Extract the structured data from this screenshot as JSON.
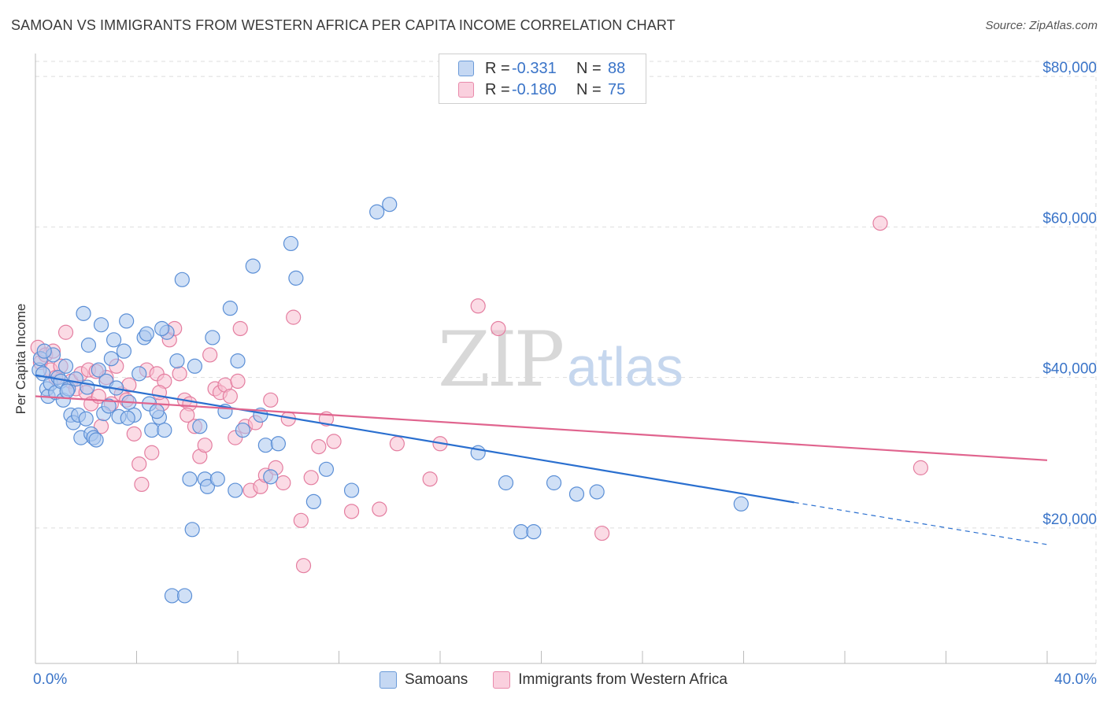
{
  "header": {
    "title": "SAMOAN VS IMMIGRANTS FROM WESTERN AFRICA PER CAPITA INCOME CORRELATION CHART",
    "source": "Source: ZipAtlas.com"
  },
  "watermark": {
    "zip": "ZIP",
    "atlas": "atlas"
  },
  "colors": {
    "blue_fill": "#a9c6ee",
    "blue_stroke": "#5b8fd6",
    "blue_line": "#2a6fcf",
    "pink_fill": "#f7bdd0",
    "pink_stroke": "#e47ea0",
    "pink_line": "#e0648e",
    "axis_text": "#3a74c8",
    "grid": "#dddddd"
  },
  "legend_top": [
    {
      "r_label": "R =",
      "r_value": "-0.331",
      "n_label": "N =",
      "n_value": "88"
    },
    {
      "r_label": "R =",
      "r_value": "-0.180",
      "n_label": "N =",
      "n_value": "75"
    }
  ],
  "legend_bottom": [
    "Samoans",
    "Immigrants from Western Africa"
  ],
  "chart_data": {
    "type": "scatter",
    "title": "SAMOAN VS IMMIGRANTS FROM WESTERN AFRICA PER CAPITA INCOME CORRELATION CHART",
    "xlabel": "",
    "ylabel": "Per Capita Income",
    "xlim": [
      0,
      40
    ],
    "ylim": [
      2000,
      82000
    ],
    "x_ticks": [
      0,
      4,
      8,
      12,
      16,
      20,
      24,
      28,
      32,
      36,
      40
    ],
    "x_tick_labels": {
      "0": "0.0%",
      "40": "40.0%"
    },
    "y_ticks": [
      20000,
      40000,
      60000,
      80000
    ],
    "y_tick_labels": [
      "$20,000",
      "$40,000",
      "$60,000",
      "$80,000"
    ],
    "grid": true,
    "legend_position": "top-center",
    "series": [
      {
        "name": "Samoans",
        "R": -0.331,
        "N": 88,
        "trend": {
          "x_start": 0,
          "y_start": 40300,
          "x_end": 30,
          "y_end": 23400,
          "dashed_to_x": 40,
          "dashed_to_y": 17800
        },
        "points": [
          [
            0.15,
            41000
          ],
          [
            0.2,
            42500
          ],
          [
            0.3,
            40500
          ],
          [
            0.45,
            38500
          ],
          [
            0.5,
            37500
          ],
          [
            0.6,
            39200
          ],
          [
            0.7,
            43000
          ],
          [
            0.8,
            38000
          ],
          [
            0.9,
            40000
          ],
          [
            1.0,
            39500
          ],
          [
            1.1,
            37000
          ],
          [
            1.2,
            41500
          ],
          [
            1.3,
            38500
          ],
          [
            1.4,
            35000
          ],
          [
            1.5,
            34000
          ],
          [
            1.6,
            39800
          ],
          [
            1.7,
            35000
          ],
          [
            1.8,
            32000
          ],
          [
            1.9,
            48500
          ],
          [
            2.0,
            34500
          ],
          [
            2.1,
            44300
          ],
          [
            2.2,
            32500
          ],
          [
            2.3,
            32000
          ],
          [
            2.4,
            31700
          ],
          [
            2.5,
            41000
          ],
          [
            2.6,
            47000
          ],
          [
            2.7,
            35200
          ],
          [
            2.8,
            39500
          ],
          [
            2.9,
            36200
          ],
          [
            3.0,
            42500
          ],
          [
            3.1,
            45000
          ],
          [
            3.2,
            38600
          ],
          [
            3.3,
            34800
          ],
          [
            3.5,
            43500
          ],
          [
            3.6,
            47500
          ],
          [
            3.7,
            36700
          ],
          [
            3.9,
            35000
          ],
          [
            4.1,
            40500
          ],
          [
            4.3,
            45300
          ],
          [
            4.4,
            45800
          ],
          [
            4.5,
            36500
          ],
          [
            4.6,
            33000
          ],
          [
            4.9,
            34700
          ],
          [
            5.1,
            33000
          ],
          [
            5.2,
            46000
          ],
          [
            5.4,
            11000
          ],
          [
            5.6,
            42200
          ],
          [
            5.8,
            53000
          ],
          [
            5.9,
            11000
          ],
          [
            6.1,
            26500
          ],
          [
            6.2,
            19800
          ],
          [
            6.3,
            41500
          ],
          [
            6.5,
            33500
          ],
          [
            6.7,
            26500
          ],
          [
            6.8,
            25500
          ],
          [
            7.0,
            45300
          ],
          [
            7.2,
            26500
          ],
          [
            7.5,
            35500
          ],
          [
            7.7,
            49200
          ],
          [
            7.9,
            25000
          ],
          [
            8.0,
            42200
          ],
          [
            8.2,
            33000
          ],
          [
            8.6,
            54800
          ],
          [
            8.9,
            35000
          ],
          [
            9.1,
            31000
          ],
          [
            9.3,
            26800
          ],
          [
            9.6,
            31200
          ],
          [
            10.1,
            57800
          ],
          [
            10.3,
            53200
          ],
          [
            11.0,
            23500
          ],
          [
            11.5,
            27800
          ],
          [
            12.5,
            25000
          ],
          [
            13.5,
            62000
          ],
          [
            14.0,
            63000
          ],
          [
            17.5,
            30000
          ],
          [
            18.6,
            26000
          ],
          [
            19.2,
            19500
          ],
          [
            19.7,
            19500
          ],
          [
            20.5,
            26000
          ],
          [
            21.4,
            24500
          ],
          [
            22.2,
            24800
          ],
          [
            27.9,
            23200
          ],
          [
            0.35,
            43500
          ],
          [
            1.25,
            38200
          ],
          [
            2.05,
            38700
          ],
          [
            3.65,
            34600
          ],
          [
            4.8,
            35500
          ],
          [
            5.0,
            46500
          ]
        ]
      },
      {
        "name": "Immigrants from Western Africa",
        "R": -0.18,
        "N": 75,
        "trend": {
          "x_start": 0,
          "y_start": 37500,
          "x_end": 40,
          "y_end": 29000
        },
        "points": [
          [
            0.1,
            44000
          ],
          [
            0.2,
            42000
          ],
          [
            0.4,
            43000
          ],
          [
            0.6,
            41000
          ],
          [
            0.7,
            43500
          ],
          [
            0.8,
            40000
          ],
          [
            1.0,
            41500
          ],
          [
            1.2,
            46000
          ],
          [
            1.4,
            39500
          ],
          [
            1.6,
            38500
          ],
          [
            1.8,
            40500
          ],
          [
            2.0,
            38000
          ],
          [
            2.1,
            41000
          ],
          [
            2.2,
            36500
          ],
          [
            2.5,
            37500
          ],
          [
            2.6,
            33500
          ],
          [
            2.8,
            40000
          ],
          [
            3.0,
            36500
          ],
          [
            3.2,
            41500
          ],
          [
            3.4,
            37800
          ],
          [
            3.6,
            37000
          ],
          [
            3.7,
            39000
          ],
          [
            3.9,
            32500
          ],
          [
            4.1,
            28500
          ],
          [
            4.2,
            25800
          ],
          [
            4.4,
            41000
          ],
          [
            4.6,
            30000
          ],
          [
            4.8,
            40500
          ],
          [
            5.0,
            36500
          ],
          [
            5.1,
            39500
          ],
          [
            5.3,
            45000
          ],
          [
            5.5,
            46500
          ],
          [
            5.7,
            40500
          ],
          [
            5.9,
            37000
          ],
          [
            6.1,
            36500
          ],
          [
            6.3,
            33500
          ],
          [
            6.5,
            29500
          ],
          [
            6.7,
            31000
          ],
          [
            6.9,
            43000
          ],
          [
            7.1,
            38500
          ],
          [
            7.3,
            38000
          ],
          [
            7.5,
            39000
          ],
          [
            7.7,
            37500
          ],
          [
            7.9,
            32000
          ],
          [
            8.1,
            46500
          ],
          [
            8.3,
            33500
          ],
          [
            8.5,
            25000
          ],
          [
            8.7,
            34000
          ],
          [
            8.9,
            25500
          ],
          [
            9.1,
            27000
          ],
          [
            9.3,
            37000
          ],
          [
            9.5,
            28000
          ],
          [
            9.8,
            26000
          ],
          [
            10.0,
            34500
          ],
          [
            10.2,
            48000
          ],
          [
            10.5,
            21000
          ],
          [
            10.6,
            15000
          ],
          [
            10.9,
            26700
          ],
          [
            11.2,
            30800
          ],
          [
            11.5,
            34500
          ],
          [
            11.8,
            31500
          ],
          [
            12.5,
            22200
          ],
          [
            13.6,
            22500
          ],
          [
            14.3,
            31200
          ],
          [
            15.6,
            26500
          ],
          [
            16.0,
            31200
          ],
          [
            17.5,
            49500
          ],
          [
            18.3,
            46500
          ],
          [
            22.4,
            19300
          ],
          [
            33.4,
            60500
          ],
          [
            35.0,
            28000
          ],
          [
            2.4,
            40800
          ],
          [
            4.9,
            38000
          ],
          [
            6.0,
            35000
          ],
          [
            8.0,
            39500
          ]
        ]
      }
    ]
  }
}
